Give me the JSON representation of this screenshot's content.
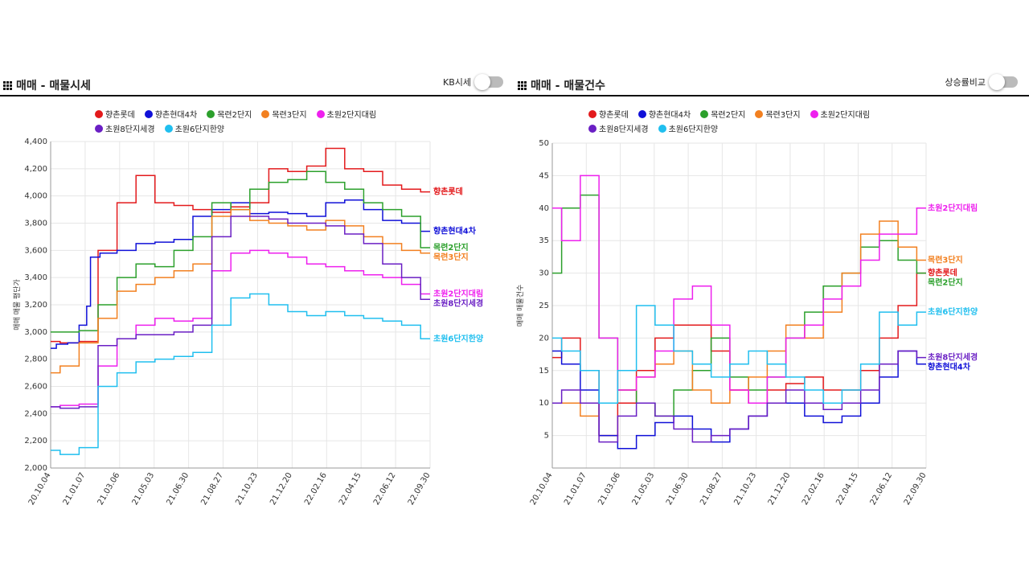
{
  "panels": {
    "left": {
      "title": "매매 - 매물시세",
      "toggle_label": "KB시세"
    },
    "right": {
      "title": "매매 - 매물건수",
      "toggle_label": "상승률비교"
    }
  },
  "series_names": [
    "향촌롯데",
    "향촌현대4차",
    "목련2단지",
    "목련3단지",
    "초원2단지대림",
    "초원8단지세경",
    "초원6단지한양"
  ],
  "series_colors": [
    "#e31a1c",
    "#1010d8",
    "#2ca02c",
    "#f28020",
    "#ee20ee",
    "#6a1fc4",
    "#20bfef"
  ],
  "chart_data": [
    {
      "type": "line",
      "ylabel": "매매 매물 평단가",
      "xlabel": "",
      "ylim": [
        2000,
        4400
      ],
      "yticks": [
        2000,
        2200,
        2400,
        2600,
        2800,
        3000,
        3200,
        3400,
        3600,
        3800,
        4000,
        4200,
        4400
      ],
      "ytick_labels": [
        "2,000",
        "2,200",
        "2,400",
        "2,600",
        "2,800",
        "3,000",
        "3,200",
        "3,400",
        "3,600",
        "3,800",
        "4,000",
        "4,200",
        "4,400"
      ],
      "xticks": [
        "20.10.04",
        "21.01.07",
        "21.03.06",
        "21.05.03",
        "21.06.30",
        "21.08.27",
        "21.10.23",
        "21.12.20",
        "22.02.16",
        "22.04.15",
        "22.06.12",
        "22.09.30"
      ],
      "grid": true,
      "legend": "top",
      "series": [
        {
          "name": "향촌롯데",
          "x": [
            0,
            5,
            10,
            15,
            20,
            25,
            30,
            35,
            40,
            45,
            50,
            55,
            60,
            65,
            70,
            75,
            80,
            85,
            90,
            95,
            100
          ],
          "values": [
            2930,
            2920,
            2930,
            3600,
            3950,
            4150,
            3950,
            3930,
            3900,
            3880,
            3920,
            3950,
            4200,
            4180,
            4220,
            4350,
            4200,
            4180,
            4080,
            4050,
            4030
          ]
        },
        {
          "name": "향촌현대4차",
          "x": [
            0,
            3,
            6,
            9,
            10,
            11,
            15,
            20,
            25,
            30,
            35,
            40,
            45,
            50,
            55,
            60,
            65,
            70,
            75,
            80,
            85,
            90,
            95,
            100
          ],
          "values": [
            2880,
            2910,
            2920,
            3050,
            3190,
            3550,
            3580,
            3600,
            3650,
            3660,
            3680,
            3850,
            3900,
            3950,
            3870,
            3880,
            3870,
            3850,
            3950,
            3970,
            3900,
            3820,
            3800,
            3740
          ]
        },
        {
          "name": "목련2단지",
          "x": [
            0,
            5,
            10,
            15,
            20,
            25,
            30,
            35,
            40,
            45,
            50,
            55,
            60,
            65,
            70,
            75,
            80,
            85,
            90,
            95,
            100
          ],
          "values": [
            3000,
            3000,
            3010,
            3200,
            3400,
            3500,
            3480,
            3600,
            3700,
            3950,
            3900,
            4050,
            4100,
            4120,
            4180,
            4100,
            4050,
            3950,
            3900,
            3850,
            3620
          ]
        },
        {
          "name": "목련3단지",
          "x": [
            0,
            5,
            10,
            15,
            20,
            25,
            30,
            35,
            40,
            45,
            50,
            55,
            60,
            65,
            70,
            75,
            80,
            85,
            90,
            95,
            100
          ],
          "values": [
            2700,
            2750,
            2920,
            3100,
            3300,
            3350,
            3400,
            3450,
            3500,
            3850,
            3900,
            3820,
            3800,
            3780,
            3750,
            3820,
            3780,
            3700,
            3650,
            3600,
            3580
          ]
        },
        {
          "name": "초원2단지대림",
          "x": [
            0,
            5,
            10,
            15,
            20,
            25,
            30,
            35,
            40,
            45,
            50,
            55,
            60,
            65,
            70,
            75,
            80,
            85,
            90,
            95,
            100
          ],
          "values": [
            2450,
            2460,
            2470,
            2750,
            2950,
            3050,
            3100,
            3080,
            3100,
            3450,
            3580,
            3600,
            3580,
            3550,
            3500,
            3480,
            3450,
            3420,
            3400,
            3350,
            3280
          ]
        },
        {
          "name": "초원8단지세경",
          "x": [
            0,
            5,
            10,
            15,
            20,
            25,
            30,
            35,
            40,
            45,
            50,
            55,
            60,
            65,
            70,
            75,
            80,
            85,
            90,
            95,
            100
          ],
          "values": [
            2450,
            2440,
            2450,
            2900,
            2950,
            2980,
            2980,
            3000,
            3050,
            3700,
            3850,
            3850,
            3830,
            3800,
            3800,
            3780,
            3720,
            3650,
            3500,
            3400,
            3240
          ]
        },
        {
          "name": "초원6단지한양",
          "x": [
            0,
            5,
            10,
            15,
            20,
            25,
            30,
            35,
            40,
            45,
            50,
            55,
            60,
            65,
            70,
            75,
            80,
            85,
            90,
            95,
            100
          ],
          "values": [
            2130,
            2100,
            2150,
            2600,
            2700,
            2780,
            2800,
            2820,
            2850,
            3050,
            3250,
            3280,
            3200,
            3150,
            3120,
            3150,
            3120,
            3100,
            3080,
            3050,
            2950
          ]
        }
      ]
    },
    {
      "type": "line",
      "ylabel": "매매 매물건수",
      "xlabel": "",
      "ylim": [
        0,
        50
      ],
      "yticks": [
        5,
        10,
        15,
        20,
        25,
        30,
        35,
        40,
        45,
        50
      ],
      "ytick_labels": [
        "5",
        "10",
        "15",
        "20",
        "25",
        "30",
        "35",
        "40",
        "45",
        "50"
      ],
      "xticks": [
        "20.10.04",
        "21.01.07",
        "21.03.06",
        "21.05.03",
        "21.06.30",
        "21.08.27",
        "21.10.23",
        "21.12.20",
        "22.02.16",
        "22.04.15",
        "22.06.12",
        "22.09.30"
      ],
      "grid": true,
      "legend": "top",
      "series": [
        {
          "name": "향촌롯데",
          "x": [
            0,
            5,
            10,
            15,
            20,
            25,
            30,
            35,
            40,
            45,
            50,
            55,
            60,
            65,
            70,
            75,
            80,
            85,
            90,
            95,
            100
          ],
          "values": [
            17,
            20,
            15,
            5,
            10,
            15,
            20,
            22,
            22,
            18,
            12,
            10,
            12,
            13,
            14,
            12,
            12,
            15,
            20,
            25,
            30
          ]
        },
        {
          "name": "향촌현대4차",
          "x": [
            0,
            5,
            10,
            15,
            20,
            25,
            30,
            35,
            40,
            45,
            50,
            55,
            60,
            65,
            70,
            75,
            80,
            85,
            90,
            95,
            100
          ],
          "values": [
            18,
            16,
            12,
            5,
            3,
            5,
            7,
            8,
            6,
            4,
            6,
            8,
            10,
            10,
            8,
            7,
            8,
            10,
            14,
            18,
            16
          ]
        },
        {
          "name": "목련2단지",
          "x": [
            0,
            5,
            10,
            15,
            20,
            25,
            30,
            35,
            40,
            45,
            50,
            55,
            60,
            65,
            70,
            75,
            80,
            85,
            90,
            95,
            100
          ],
          "values": [
            30,
            40,
            42,
            20,
            12,
            10,
            8,
            12,
            15,
            20,
            14,
            12,
            14,
            20,
            24,
            28,
            30,
            34,
            35,
            32,
            30
          ]
        },
        {
          "name": "목련3단지",
          "x": [
            0,
            5,
            10,
            15,
            20,
            25,
            30,
            35,
            40,
            45,
            50,
            55,
            60,
            65,
            70,
            75,
            80,
            85,
            90,
            95,
            100
          ],
          "values": [
            10,
            10,
            8,
            10,
            12,
            14,
            16,
            18,
            12,
            10,
            12,
            14,
            18,
            22,
            20,
            24,
            30,
            36,
            38,
            34,
            32
          ]
        },
        {
          "name": "초원2단지대림",
          "x": [
            0,
            5,
            10,
            15,
            20,
            25,
            30,
            35,
            40,
            45,
            50,
            55,
            60,
            65,
            70,
            75,
            80,
            85,
            90,
            95,
            100
          ],
          "values": [
            40,
            35,
            45,
            20,
            12,
            14,
            18,
            26,
            28,
            22,
            12,
            10,
            14,
            20,
            22,
            26,
            28,
            32,
            36,
            36,
            40
          ]
        },
        {
          "name": "초원8단지세경",
          "x": [
            0,
            5,
            10,
            15,
            20,
            25,
            30,
            35,
            40,
            45,
            50,
            55,
            60,
            65,
            70,
            75,
            80,
            85,
            90,
            95,
            100
          ],
          "values": [
            10,
            12,
            10,
            4,
            8,
            10,
            8,
            6,
            4,
            5,
            6,
            8,
            10,
            12,
            10,
            9,
            10,
            12,
            16,
            18,
            17
          ]
        },
        {
          "name": "초원6단지한양",
          "x": [
            0,
            5,
            10,
            15,
            20,
            25,
            30,
            35,
            40,
            45,
            50,
            55,
            60,
            65,
            70,
            75,
            80,
            85,
            90,
            95,
            100
          ],
          "values": [
            20,
            18,
            15,
            10,
            15,
            25,
            22,
            18,
            16,
            14,
            16,
            18,
            16,
            14,
            12,
            10,
            12,
            16,
            24,
            22,
            24
          ]
        }
      ]
    }
  ]
}
